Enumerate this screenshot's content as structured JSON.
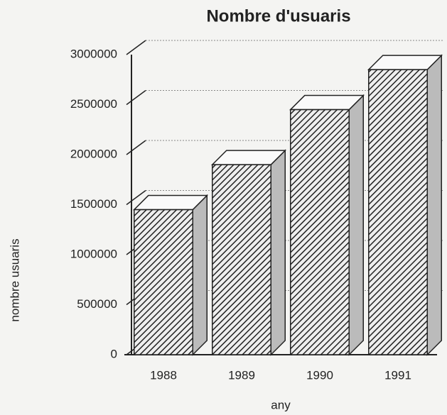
{
  "chart_data": {
    "type": "bar3d",
    "title": "Nombre d'usuaris",
    "x_label": "any",
    "y_label": "nombre usuaris",
    "categories": [
      "1988",
      "1989",
      "1990",
      "1991"
    ],
    "values": [
      1450000,
      1900000,
      2450000,
      2850000
    ],
    "ylim": [
      0,
      3000000
    ],
    "yticks": [
      0,
      500000,
      1000000,
      1500000,
      2000000,
      2500000,
      3000000
    ],
    "grid": true
  }
}
